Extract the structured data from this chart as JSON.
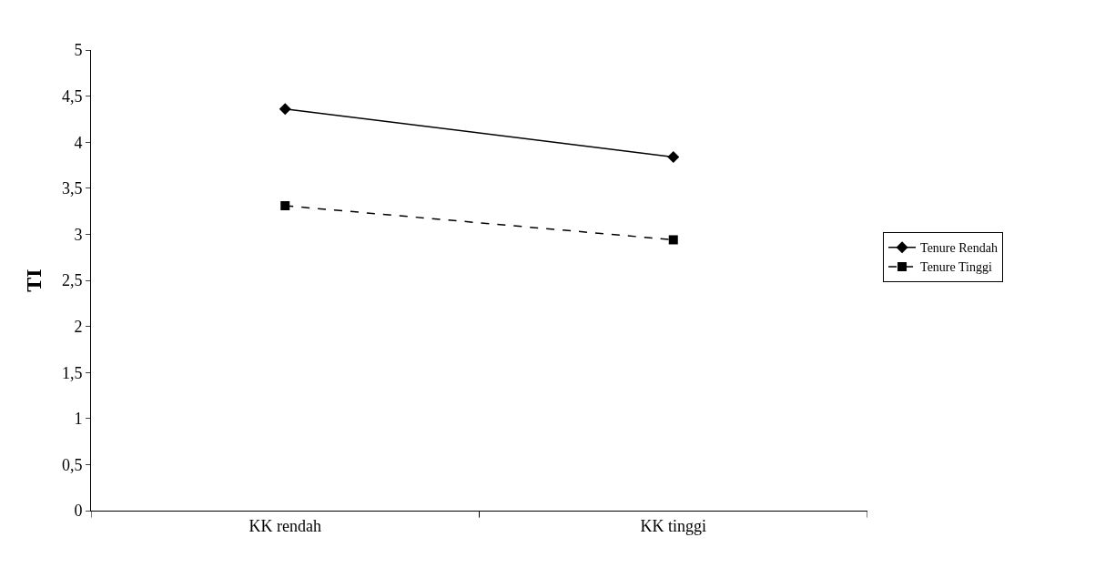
{
  "chart_data": {
    "type": "line",
    "ylabel": "TI",
    "categories": [
      "KK rendah",
      "KK tinggi"
    ],
    "series": [
      {
        "name": "Tenure Rendah",
        "color": "#000000",
        "values": [
          4.36,
          3.84
        ],
        "marker": "diamond",
        "line_style": "solid"
      },
      {
        "name": "Tenure Tinggi",
        "color": "#000000",
        "values": [
          3.31,
          2.94
        ],
        "marker": "square",
        "line_style": "dashed"
      }
    ],
    "ylim": [
      0,
      5
    ],
    "yticks": [
      0,
      {
        "value": 0.5,
        "label": "0,5"
      },
      1,
      {
        "value": 1.5,
        "label": "1,5"
      },
      2,
      {
        "value": 2.5,
        "label": "2,5"
      },
      3,
      {
        "value": 3.5,
        "label": "3,5"
      },
      4,
      {
        "value": 4.5,
        "label": "4,5"
      },
      5
    ],
    "legend": "right"
  }
}
